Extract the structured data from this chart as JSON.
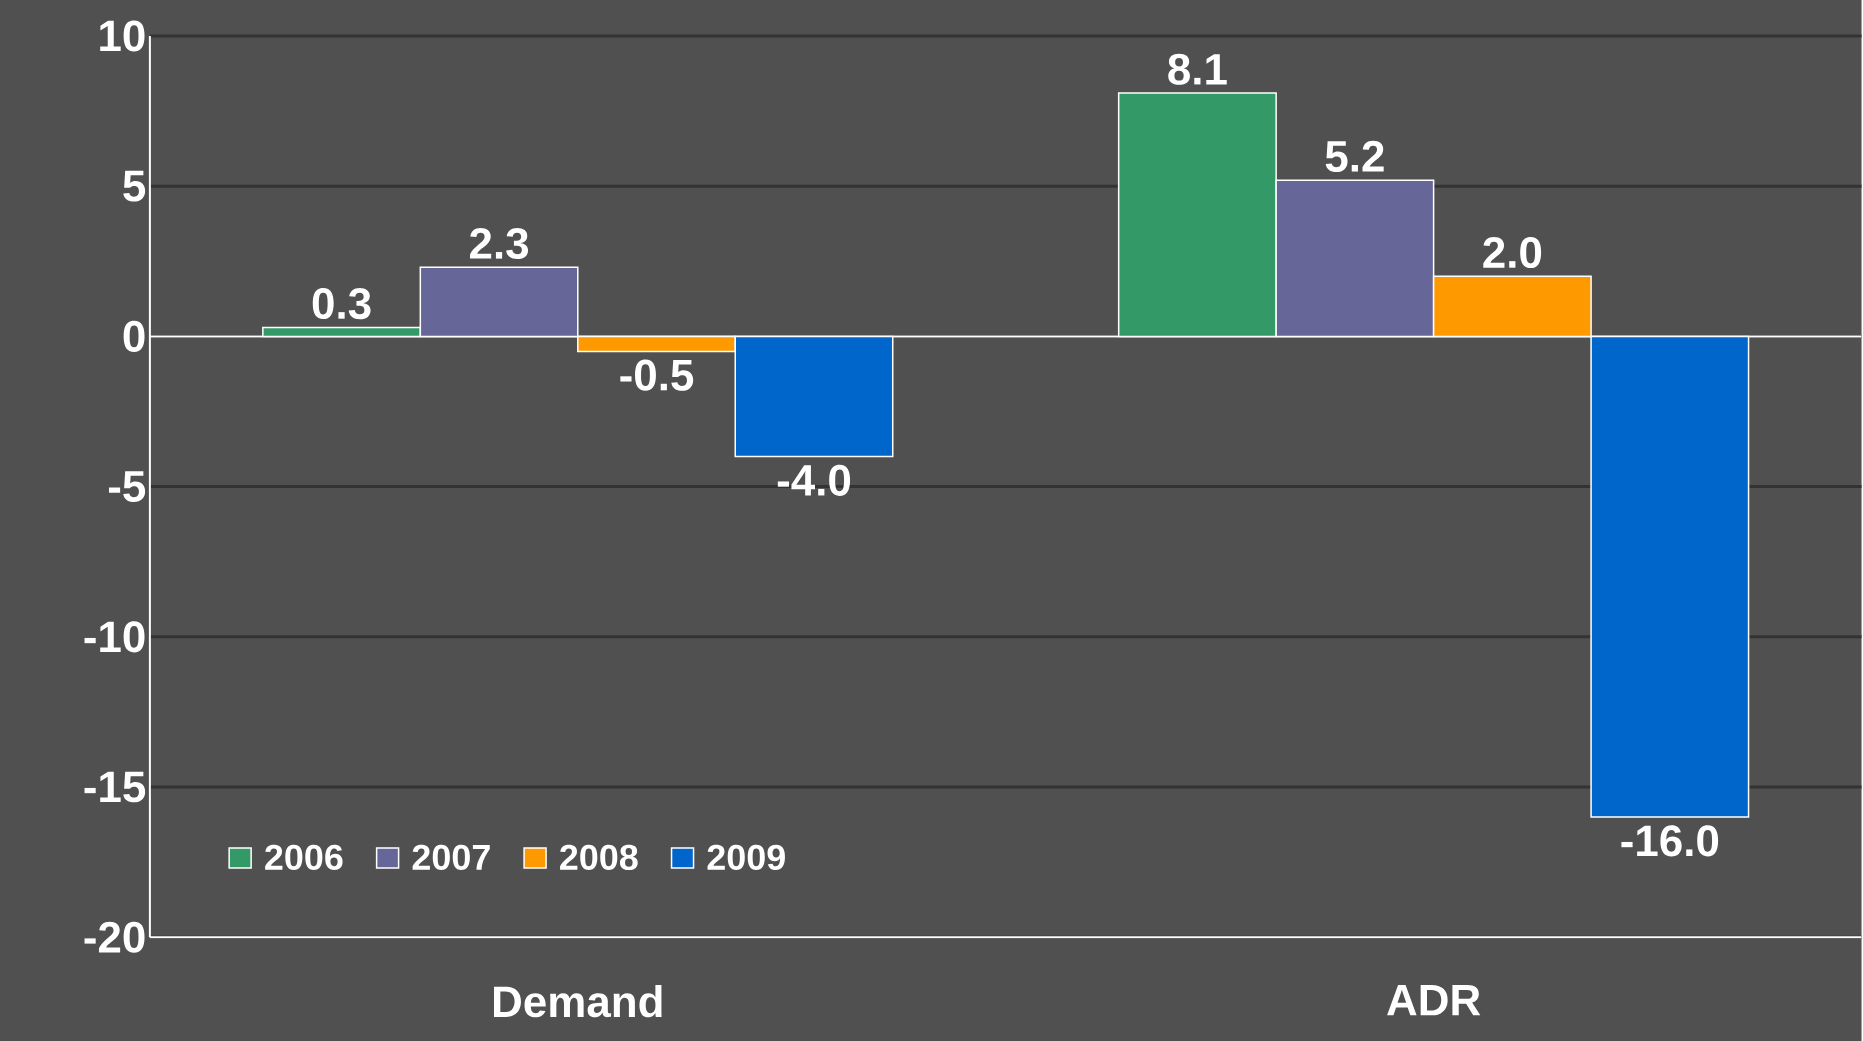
{
  "chart_data": {
    "type": "bar",
    "categories": [
      "Demand",
      "ADR"
    ],
    "series": [
      {
        "name": "2006",
        "color": "#339966",
        "values": [
          0.3,
          8.1
        ],
        "value_labels": [
          "0.3",
          "8.1"
        ]
      },
      {
        "name": "2007",
        "color": "#666699",
        "values": [
          2.3,
          5.2
        ],
        "value_labels": [
          "2.3",
          "5.2"
        ]
      },
      {
        "name": "2008",
        "color": "#ff9900",
        "values": [
          -0.5,
          2.0
        ],
        "value_labels": [
          "-0.5",
          "2.0"
        ]
      },
      {
        "name": "2009",
        "color": "#0066cc",
        "values": [
          -4.0,
          -16.0
        ],
        "value_labels": [
          "-4.0",
          "-16.0"
        ]
      }
    ],
    "ylim": [
      -20,
      10
    ],
    "yticks": [
      -20,
      -15,
      -10,
      -5,
      0,
      5,
      10
    ],
    "grid": "y",
    "legend": "bottom left"
  }
}
